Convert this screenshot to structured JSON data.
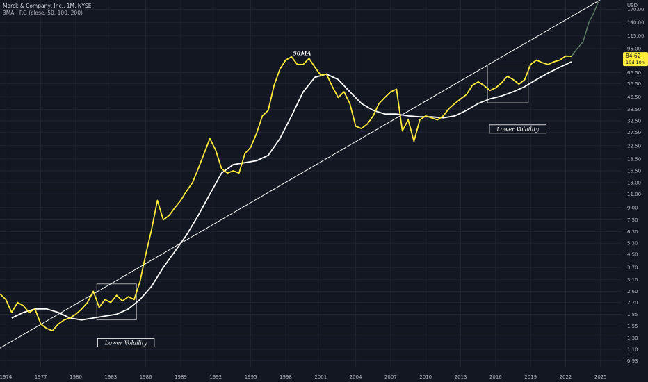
{
  "header": {
    "title": "Merck & Company, Inc., 1M, NYSE",
    "indicator": "3MA - RG (close, 50, 100, 200)"
  },
  "colors": {
    "background": "#131722",
    "grid": "#1f2430",
    "price": "#ffeb3b",
    "projection": "#5d7a64",
    "ma": "#ffffff",
    "trendline": "#ffffff",
    "axis_text": "#b2b5be",
    "price_badge": "#ffeb3b"
  },
  "chart_data": {
    "type": "line",
    "scale": "log",
    "x_ticks": [
      "1974",
      "1977",
      "1980",
      "1983",
      "1986",
      "1989",
      "1992",
      "1995",
      "1998",
      "2001",
      "2004",
      "2007",
      "2010",
      "2013",
      "2016",
      "2019",
      "2022",
      "2025"
    ],
    "y_axis_unit": "USD",
    "y_ticks": [
      170,
      140,
      115,
      95,
      66.5,
      56.5,
      46.5,
      38.5,
      32.5,
      27.5,
      22.5,
      18.5,
      15.5,
      13,
      11,
      9,
      7.5,
      6.3,
      5.3,
      4.5,
      3.7,
      3.1,
      2.6,
      2.2,
      1.85,
      1.55,
      1.3,
      1.1,
      0.93
    ],
    "y_tick_labels": [
      "170.00",
      "140.00",
      "115.00",
      "95.00",
      "66.50",
      "56.50",
      "46.50",
      "38.50",
      "32.50",
      "27.50",
      "22.50",
      "18.50",
      "15.50",
      "13.00",
      "11.00",
      "9.00",
      "7.50",
      "6.30",
      "5.30",
      "4.50",
      "3.70",
      "3.10",
      "2.60",
      "2.20",
      "1.85",
      "1.55",
      "1.30",
      "1.10",
      "0.93"
    ],
    "ylim": [
      0.85,
      195
    ],
    "xlim": [
      1973.5,
      2026.8
    ],
    "price_series": {
      "x": [
        1973.5,
        1974.0,
        1974.5,
        1975.0,
        1975.5,
        1976.0,
        1976.5,
        1977.0,
        1977.5,
        1978.0,
        1978.5,
        1979.0,
        1979.5,
        1980.0,
        1980.5,
        1981.0,
        1981.5,
        1982.0,
        1982.5,
        1983.0,
        1983.5,
        1984.0,
        1984.5,
        1985.0,
        1985.5,
        1986.0,
        1986.5,
        1987.0,
        1987.5,
        1988.0,
        1988.5,
        1989.0,
        1989.5,
        1990.0,
        1990.5,
        1991.0,
        1991.5,
        1992.0,
        1992.5,
        1993.0,
        1993.5,
        1994.0,
        1994.5,
        1995.0,
        1995.5,
        1996.0,
        1996.5,
        1997.0,
        1997.5,
        1998.0,
        1998.5,
        1999.0,
        1999.5,
        2000.0,
        2000.5,
        2001.0,
        2001.5,
        2002.0,
        2002.5,
        2003.0,
        2003.5,
        2004.0,
        2004.5,
        2005.0,
        2005.5,
        2006.0,
        2006.5,
        2007.0,
        2007.5,
        2008.0,
        2008.5,
        2009.0,
        2009.5,
        2010.0,
        2010.5,
        2011.0,
        2011.5,
        2012.0,
        2012.5,
        2013.0,
        2013.5,
        2014.0,
        2014.5,
        2015.0,
        2015.5,
        2016.0,
        2016.5,
        2017.0,
        2017.5,
        2018.0,
        2018.5,
        2019.0,
        2019.5,
        2020.0,
        2020.5,
        2021.0,
        2021.5,
        2022.0,
        2022.5
      ],
      "y": [
        2.5,
        2.3,
        1.9,
        2.2,
        2.1,
        1.9,
        2.0,
        1.6,
        1.5,
        1.45,
        1.6,
        1.7,
        1.75,
        1.85,
        2.0,
        2.2,
        2.6,
        2.05,
        2.3,
        2.2,
        2.45,
        2.25,
        2.4,
        2.3,
        3.0,
        4.5,
        6.5,
        10.0,
        7.5,
        8.0,
        9.0,
        10.0,
        11.5,
        13.0,
        16.0,
        20.0,
        25.0,
        21.0,
        16.0,
        15.0,
        15.5,
        15.0,
        20.0,
        22.0,
        27.0,
        35.0,
        38.0,
        55.0,
        70.0,
        80.0,
        84.0,
        75.0,
        75.0,
        82.0,
        72.0,
        64.0,
        65.0,
        54.0,
        46.0,
        50.0,
        42.0,
        30.0,
        29.0,
        31.0,
        35.0,
        42.0,
        46.0,
        50.0,
        52.0,
        28.0,
        33.0,
        24.0,
        33.0,
        35.0,
        34.0,
        33.0,
        35.0,
        39.0,
        42.0,
        45.0,
        48.0,
        55.0,
        58.0,
        55.0,
        51.0,
        53.0,
        57.0,
        63.0,
        60.0,
        56.0,
        60.0,
        75.0,
        80.0,
        77.0,
        75.0,
        78.0,
        80.0,
        85.0,
        84.62
      ]
    },
    "projection_series": {
      "x": [
        2022.5,
        2023.0,
        2023.5,
        2024.0,
        2024.4,
        2024.8
      ],
      "y": [
        84.62,
        95,
        105,
        140,
        160,
        190
      ]
    },
    "ma_series": {
      "name": "50MA",
      "x": [
        1974.5,
        1975.5,
        1976.5,
        1977.5,
        1978.5,
        1979.5,
        1980.5,
        1981.5,
        1982.5,
        1983.5,
        1984.5,
        1985.5,
        1986.5,
        1987.5,
        1988.5,
        1989.5,
        1990.5,
        1991.5,
        1992.5,
        1993.5,
        1994.5,
        1995.5,
        1996.5,
        1997.5,
        1998.5,
        1999.5,
        2000.5,
        2001.5,
        2002.5,
        2003.5,
        2004.5,
        2005.5,
        2006.5,
        2007.5,
        2008.5,
        2009.5,
        2010.5,
        2011.5,
        2012.5,
        2013.5,
        2014.5,
        2015.5,
        2016.5,
        2017.5,
        2018.5,
        2019.5,
        2020.5,
        2021.5,
        2022.5
      ],
      "y": [
        1.75,
        1.9,
        2.0,
        2.0,
        1.9,
        1.75,
        1.7,
        1.75,
        1.8,
        1.85,
        2.0,
        2.3,
        2.8,
        3.7,
        4.7,
        6.0,
        8.0,
        11.0,
        15.0,
        17.0,
        17.5,
        18.0,
        19.5,
        25.0,
        35.0,
        50.0,
        62.0,
        65.0,
        60.0,
        50.0,
        42.0,
        38.0,
        36.0,
        36.0,
        35.0,
        34.5,
        34.5,
        34.0,
        35.0,
        38.0,
        42.0,
        45.0,
        47.0,
        50.0,
        54.0,
        60.0,
        66.0,
        72.0,
        78.0
      ]
    },
    "trendline": {
      "x": [
        1973.5,
        2026.8
      ],
      "y": [
        1.12,
        235
      ]
    },
    "current_price": "84.62",
    "current_price_countdown": "10d 10h",
    "annotations": [
      {
        "text": "50MA",
        "x": 1999.4,
        "y": 86
      },
      {
        "text": "Lower Volaility",
        "x": 2017.9,
        "y": 28.5,
        "boxed": true
      },
      {
        "text": "Lower Volaility",
        "x": 1984.3,
        "y": 1.2,
        "boxed": true
      }
    ],
    "highlight_boxes": [
      {
        "x": [
          1981.8,
          1985.2
        ],
        "y": [
          1.7,
          2.9
        ]
      },
      {
        "x": [
          2015.3,
          2018.8
        ],
        "y": [
          42.5,
          74.5
        ]
      }
    ],
    "grid": true,
    "legend": "none"
  }
}
